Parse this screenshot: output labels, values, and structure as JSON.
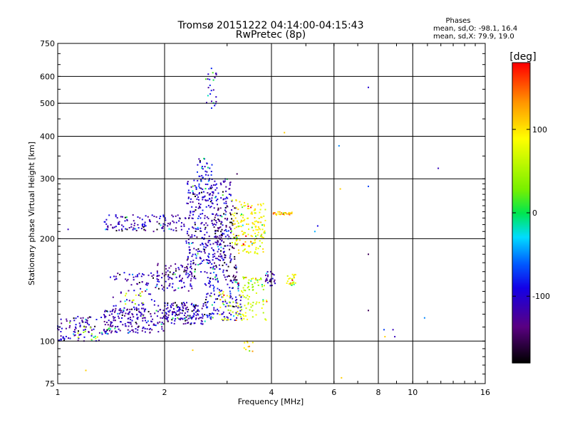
{
  "chart_data": {
    "type": "scatter",
    "title": "Tromsø 20151222 04:14:00-04:15:43",
    "subtitle": "RwPretec (8p)",
    "xlabel": "Frequency [MHz]",
    "ylabel": "Stationary phase Virtual Height [km]",
    "x_scale": "log",
    "y_scale": "log",
    "xlim": [
      1,
      16
    ],
    "ylim": [
      75,
      750
    ],
    "x_ticks": [
      "1",
      "2",
      "4",
      "6",
      "8",
      "10",
      "16"
    ],
    "y_ticks": [
      "75",
      "100",
      "200",
      "300",
      "400",
      "500",
      "600",
      "750"
    ],
    "grid": true,
    "phase_stats": {
      "heading": "Phases",
      "line_o": "mean, sd,O: -98.1, 16.4",
      "line_x": "mean, sd,X:  79.9, 19.0"
    },
    "colorbar": {
      "label": "[deg]",
      "range": [
        -180,
        180
      ],
      "ticks": [
        "100",
        "0",
        "-100"
      ],
      "palette": "rainbow"
    },
    "clusters": [
      {
        "f": [
          1.0,
          1.35
        ],
        "h": [
          100,
          118
        ],
        "phase": -110,
        "n": 90
      },
      {
        "f": [
          1.35,
          2.0
        ],
        "h": [
          105,
          125
        ],
        "phase": -115,
        "n": 180
      },
      {
        "f": [
          2.0,
          2.6
        ],
        "h": [
          112,
          130
        ],
        "phase": -110,
        "n": 160
      },
      {
        "f": [
          2.6,
          3.3
        ],
        "h": [
          115,
          150
        ],
        "phase": -95,
        "n": 120
      },
      {
        "f": [
          1.4,
          1.95
        ],
        "h": [
          120,
          160
        ],
        "phase": -110,
        "n": 90
      },
      {
        "f": [
          1.9,
          2.4
        ],
        "h": [
          140,
          170
        ],
        "phase": -115,
        "n": 90
      },
      {
        "f": [
          2.3,
          3.1
        ],
        "h": [
          150,
          300
        ],
        "phase": -105,
        "n": 380
      },
      {
        "f": [
          2.45,
          2.75
        ],
        "h": [
          260,
          345
        ],
        "phase": -100,
        "n": 50
      },
      {
        "f": [
          1.35,
          2.3
        ],
        "h": [
          210,
          235
        ],
        "phase": -110,
        "n": 120
      },
      {
        "f": [
          2.75,
          3.2
        ],
        "h": [
          150,
          250
        ],
        "phase": -150,
        "n": 100
      },
      {
        "f": [
          2.85,
          3.9
        ],
        "h": [
          115,
          140
        ],
        "phase": 70,
        "n": 80
      },
      {
        "f": [
          3.15,
          3.85
        ],
        "h": [
          140,
          155
        ],
        "phase": 60,
        "n": 40
      },
      {
        "f": [
          3.1,
          3.85
        ],
        "h": [
          180,
          260
        ],
        "phase": 90,
        "n": 170
      },
      {
        "f": [
          3.85,
          4.1
        ],
        "h": [
          145,
          160
        ],
        "phase": -115,
        "n": 25
      },
      {
        "f": [
          4.4,
          4.7
        ],
        "h": [
          145,
          158
        ],
        "phase": 80,
        "n": 25
      },
      {
        "f": [
          4.05,
          4.6
        ],
        "h": [
          235,
          240
        ],
        "phase": 110,
        "n": 30
      },
      {
        "f": [
          2.6,
          2.8
        ],
        "h": [
          470,
          640
        ],
        "phase": -100,
        "n": 25
      },
      {
        "f": [
          3.35,
          3.55
        ],
        "h": [
          93,
          100
        ],
        "phase": 110,
        "n": 10
      },
      {
        "f": [
          1.1,
          1.3
        ],
        "h": [
          100,
          110
        ],
        "phase": 60,
        "n": 10
      },
      {
        "f": [
          1.55,
          1.75
        ],
        "h": [
          128,
          140
        ],
        "phase": 65,
        "n": 12
      }
    ],
    "isolated_points": [
      {
        "f": 1.07,
        "h": 213,
        "phase": -110
      },
      {
        "f": 1.2,
        "h": 82,
        "phase": 110
      },
      {
        "f": 2.4,
        "h": 94,
        "phase": 110
      },
      {
        "f": 3.2,
        "h": 310,
        "phase": -150
      },
      {
        "f": 4.35,
        "h": 410,
        "phase": 110
      },
      {
        "f": 5.4,
        "h": 218,
        "phase": -90
      },
      {
        "f": 5.3,
        "h": 210,
        "phase": -40
      },
      {
        "f": 6.2,
        "h": 375,
        "phase": -50
      },
      {
        "f": 6.25,
        "h": 280,
        "phase": 110
      },
      {
        "f": 6.3,
        "h": 78,
        "phase": 110
      },
      {
        "f": 7.5,
        "h": 557,
        "phase": -100
      },
      {
        "f": 7.5,
        "h": 285,
        "phase": -70
      },
      {
        "f": 7.5,
        "h": 180,
        "phase": -150
      },
      {
        "f": 7.5,
        "h": 123,
        "phase": -150
      },
      {
        "f": 8.3,
        "h": 108,
        "phase": -70
      },
      {
        "f": 8.35,
        "h": 103,
        "phase": 110
      },
      {
        "f": 8.8,
        "h": 108,
        "phase": -110
      },
      {
        "f": 8.9,
        "h": 103,
        "phase": -110
      },
      {
        "f": 10.8,
        "h": 117,
        "phase": -50
      },
      {
        "f": 11.8,
        "h": 322,
        "phase": -110
      }
    ]
  }
}
